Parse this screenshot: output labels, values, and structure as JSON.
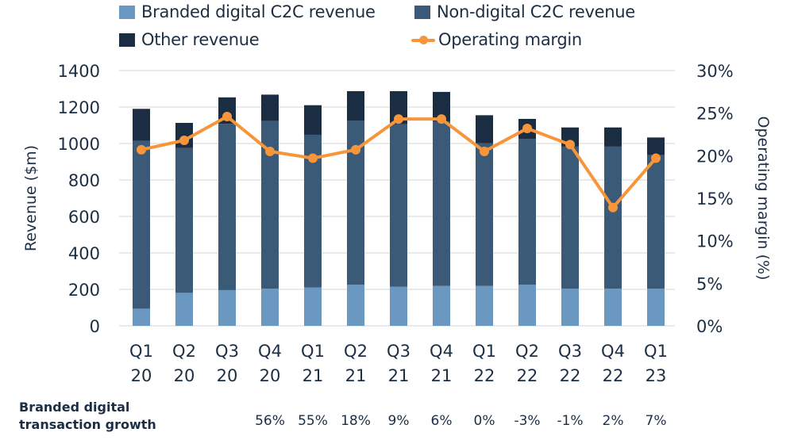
{
  "chart_data": {
    "type": "bar",
    "subtype": "stacked-bar-with-line",
    "categories": [
      [
        "Q1",
        "20"
      ],
      [
        "Q2",
        "20"
      ],
      [
        "Q3",
        "20"
      ],
      [
        "Q4",
        "20"
      ],
      [
        "Q1",
        "21"
      ],
      [
        "Q2",
        "21"
      ],
      [
        "Q3",
        "21"
      ],
      [
        "Q4",
        "21"
      ],
      [
        "Q1",
        "22"
      ],
      [
        "Q2",
        "22"
      ],
      [
        "Q3",
        "22"
      ],
      [
        "Q4",
        "22"
      ],
      [
        "Q1",
        "23"
      ]
    ],
    "series": [
      {
        "name": "Branded digital C2C revenue",
        "type": "bar",
        "axis": "left",
        "color": "#6b98c0",
        "values": [
          94,
          181,
          196,
          204,
          210,
          225,
          214,
          219,
          219,
          225,
          204,
          204,
          204
        ]
      },
      {
        "name": "Non-digital C2C revenue",
        "type": "bar",
        "axis": "left",
        "color": "#3b5a78",
        "values": [
          920,
          794,
          912,
          919,
          838,
          901,
          892,
          901,
          782,
          801,
          779,
          779,
          732
        ]
      },
      {
        "name": "Other revenue",
        "type": "bar",
        "axis": "left",
        "color": "#1b2d42",
        "values": [
          176,
          138,
          145,
          145,
          162,
          161,
          181,
          163,
          154,
          109,
          105,
          105,
          97
        ]
      },
      {
        "name": "Operating margin",
        "type": "line",
        "axis": "right",
        "color": "#f7953b",
        "values": [
          20.7,
          21.8,
          24.6,
          20.5,
          19.7,
          20.7,
          24.3,
          24.3,
          20.5,
          23.2,
          21.3,
          13.9,
          19.7
        ]
      }
    ],
    "legend_order": [
      0,
      1,
      2,
      3
    ],
    "legend_position": "top",
    "ylabel": "Revenue ($m)",
    "ylim": [
      0,
      1400
    ],
    "yticks": [
      "0",
      "200",
      "400",
      "600",
      "800",
      "1000",
      "1200",
      "1400"
    ],
    "y2label": "Operating margin (%)",
    "y2lim": [
      0,
      30
    ],
    "y2ticks": [
      "0%",
      "5%",
      "10%",
      "15%",
      "20%",
      "25%",
      "30%"
    ],
    "grid": true,
    "table_row": {
      "label_line1": "Branded digital",
      "label_line2": "transaction growth",
      "values": [
        "",
        "",
        "",
        "56%",
        "55%",
        "18%",
        "9%",
        "6%",
        "0%",
        "-3%",
        "-1%",
        "2%",
        "7%"
      ]
    }
  }
}
